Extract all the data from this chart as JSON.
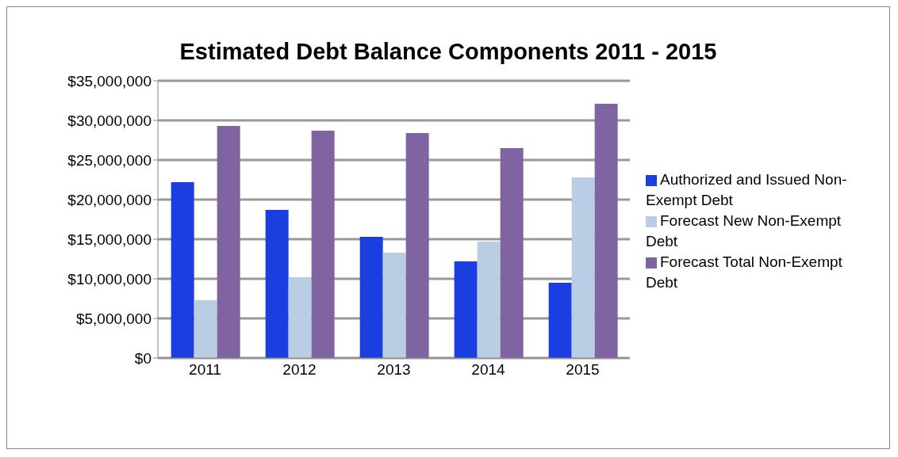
{
  "chart_data": {
    "type": "bar",
    "title": "Estimated Debt Balance Components 2011 - 2015",
    "categories": [
      "2011",
      "2012",
      "2013",
      "2014",
      "2015"
    ],
    "series": [
      {
        "name": "Authorized and Issued Non-Exempt Debt",
        "color": "#1a3ee0",
        "values": [
          22200000,
          18700000,
          15300000,
          12200000,
          9500000
        ]
      },
      {
        "name": "Forecast New Non-Exempt Debt",
        "color": "#b9cde5",
        "values": [
          7300000,
          10200000,
          13300000,
          14700000,
          22800000
        ]
      },
      {
        "name": "Forecast Total Non-Exempt Debt",
        "color": "#8064a2",
        "values": [
          29300000,
          28700000,
          28400000,
          26500000,
          32100000
        ]
      }
    ],
    "ylim": [
      0,
      35000000
    ],
    "yticks": [
      {
        "value": 0,
        "label": "$0"
      },
      {
        "value": 5000000,
        "label": "$5,000,000"
      },
      {
        "value": 10000000,
        "label": "$10,000,000"
      },
      {
        "value": 15000000,
        "label": "$15,000,000"
      },
      {
        "value": 20000000,
        "label": "$20,000,000"
      },
      {
        "value": 25000000,
        "label": "$25,000,000"
      },
      {
        "value": 30000000,
        "label": "$30,000,000"
      },
      {
        "value": 35000000,
        "label": "$35,000,000"
      }
    ],
    "grid": "y",
    "legend": "right"
  }
}
